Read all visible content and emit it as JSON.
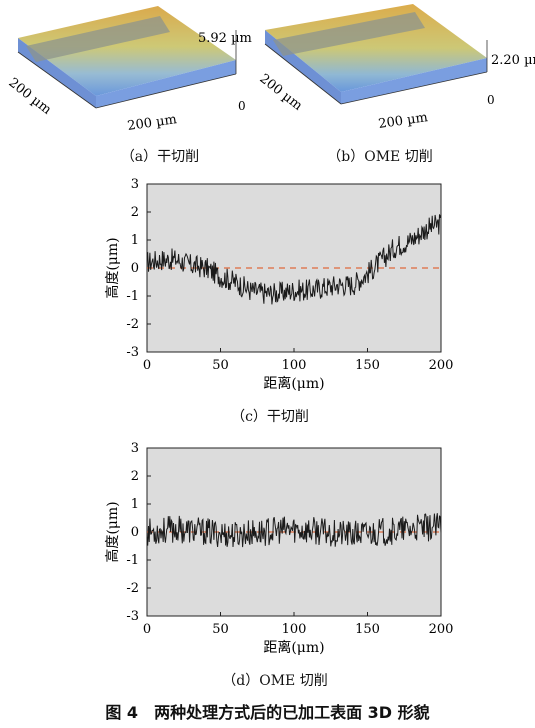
{
  "panel_a": {
    "height_label": "5.92 µm",
    "axis_y_label": "200 µm",
    "axis_x_label": "200 µm",
    "axis_zero": "0",
    "caption": "（a）干切削"
  },
  "panel_b": {
    "height_label": "2.20 µm",
    "axis_y_label": "200 µm",
    "axis_x_label": "200 µm",
    "axis_zero": "0",
    "caption": "（b）OME 切削"
  },
  "caption_c": "（c）干切削",
  "caption_d": "（d）OME 切削",
  "figure_title": "图 4　两种处理方式后的已加工表面 3D 形貌",
  "colors": {
    "plot_bg": "#dcdcdc",
    "trace": "#1a1a1a",
    "reference_line": "#e06a3c"
  },
  "chart_data": [
    {
      "type": "line",
      "xlabel": "距离(μm)",
      "ylabel": "高度(μm)",
      "xlim": [
        0,
        200
      ],
      "ylim": [
        -3,
        3
      ],
      "xticks": [
        "0",
        "50",
        "100",
        "150",
        "200"
      ],
      "yticks": [
        "3",
        "2",
        "1",
        "0",
        "-1",
        "-2",
        "-3"
      ],
      "reference_y": 0,
      "series": [
        {
          "x": [
            0,
            10,
            20,
            30,
            40,
            50,
            60,
            70,
            80,
            90,
            100,
            110,
            120,
            130,
            140,
            150,
            160,
            170,
            180,
            190,
            200
          ],
          "values": [
            0.2,
            0.3,
            0.3,
            0.1,
            0.0,
            -0.3,
            -0.5,
            -0.8,
            -0.9,
            -0.9,
            -0.8,
            -0.8,
            -0.7,
            -0.6,
            -0.6,
            -0.2,
            0.3,
            0.8,
            1.0,
            1.4,
            1.6
          ],
          "noise": 0.4
        }
      ]
    },
    {
      "type": "line",
      "xlabel": "距离(μm)",
      "ylabel": "高度(μm)",
      "xlim": [
        0,
        200
      ],
      "ylim": [
        -3,
        3
      ],
      "xticks": [
        "0",
        "50",
        "100",
        "150",
        "200"
      ],
      "yticks": [
        "3",
        "2",
        "1",
        "0",
        "-1",
        "-2",
        "-3"
      ],
      "reference_y": 0,
      "series": [
        {
          "x": [
            0,
            20,
            40,
            60,
            80,
            100,
            120,
            140,
            160,
            180,
            200
          ],
          "values": [
            0.0,
            0.1,
            0.0,
            -0.1,
            0.0,
            0.1,
            0.0,
            -0.1,
            0.0,
            0.1,
            0.2
          ],
          "noise": 0.5
        }
      ]
    }
  ]
}
